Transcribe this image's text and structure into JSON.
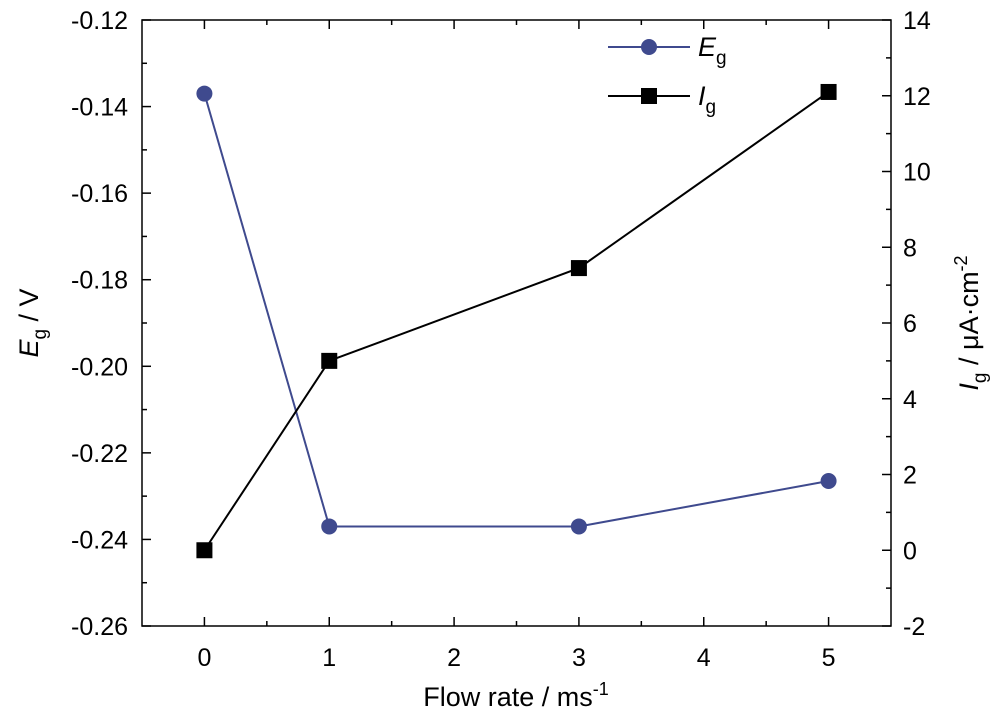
{
  "chart_data": {
    "type": "line",
    "x": [
      0,
      1,
      3,
      5
    ],
    "xlabel": {
      "main": "Flow rate / ms",
      "sup": "-1"
    },
    "xlim": [
      -0.5,
      5.5
    ],
    "xticks": [
      "0",
      "1",
      "2",
      "3",
      "4",
      "5"
    ],
    "grid": false,
    "legend": "top-right",
    "series": [
      {
        "name": "E",
        "name_sub": "g",
        "axis": "left",
        "marker": "circle",
        "color": "#3f4a8e",
        "values": [
          -0.137,
          -0.237,
          -0.237,
          -0.2265
        ]
      },
      {
        "name": "I",
        "name_sub": "g",
        "axis": "right",
        "marker": "square",
        "color": "#000000",
        "values": [
          0.0,
          5.0,
          7.45,
          12.1
        ]
      }
    ],
    "y_left": {
      "label_main": "E",
      "label_sub": "g",
      "label_rest": " / V",
      "lim": [
        -0.26,
        -0.12
      ],
      "ticks": [
        "-0.26",
        "-0.24",
        "-0.22",
        "-0.20",
        "-0.18",
        "-0.16",
        "-0.14",
        "-0.12"
      ]
    },
    "y_right": {
      "label_main": "I",
      "label_sub": "g",
      "label_rest": " / μA·cm",
      "label_sup": "-2",
      "lim": [
        -2,
        14
      ],
      "ticks": [
        "-2",
        "0",
        "2",
        "4",
        "6",
        "8",
        "10",
        "12",
        "14"
      ]
    }
  }
}
